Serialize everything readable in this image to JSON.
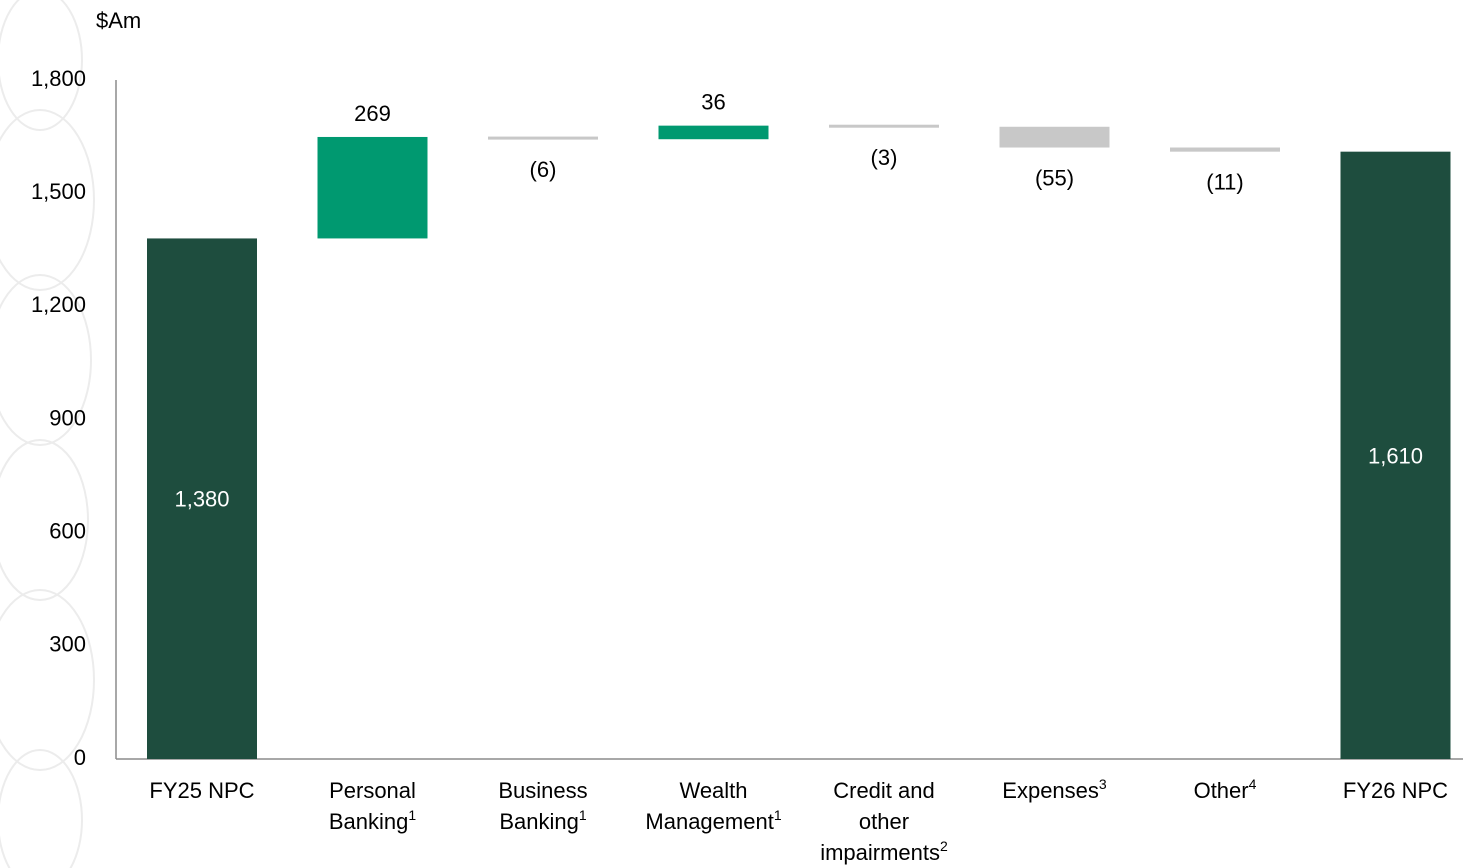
{
  "chart_data": {
    "type": "bar",
    "subtype": "waterfall",
    "unit_label": "$Am",
    "ylim": [
      0,
      1800
    ],
    "yticks": [
      0,
      300,
      600,
      900,
      1200,
      1500,
      1800
    ],
    "ytick_labels": [
      "0",
      "300",
      "600",
      "900",
      "1,200",
      "1,500",
      "1,800"
    ],
    "grid": false,
    "legend": "none",
    "colors": {
      "total": "#1e4d3e",
      "increase": "#009970",
      "decrease": "#c8c8c8"
    },
    "bars": [
      {
        "label": "FY25 NPC",
        "sup": "",
        "kind": "total",
        "value": 1380,
        "label_text": "1,380"
      },
      {
        "label": "Personal Banking",
        "sup": "1",
        "kind": "increase",
        "value": 269,
        "label_text": "269"
      },
      {
        "label": "Business Banking",
        "sup": "1",
        "kind": "decrease",
        "value": -6,
        "label_text": "(6)"
      },
      {
        "label": "Wealth Management",
        "sup": "1",
        "kind": "increase",
        "value": 36,
        "label_text": "36"
      },
      {
        "label": "Credit and other impairments",
        "sup": "2",
        "kind": "decrease",
        "value": -3,
        "label_text": "(3)"
      },
      {
        "label": "Expenses",
        "sup": "3",
        "kind": "decrease",
        "value": -55,
        "label_text": "(55)"
      },
      {
        "label": "Other",
        "sup": "4",
        "kind": "decrease",
        "value": -11,
        "label_text": "(11)"
      },
      {
        "label": "FY26 NPC",
        "sup": "",
        "kind": "total",
        "value": 1610,
        "label_text": "1,610"
      }
    ],
    "category_label_lines": [
      [
        [
          "FY25 NPC",
          ""
        ]
      ],
      [
        [
          "Personal",
          ""
        ],
        [
          "Banking",
          "1"
        ]
      ],
      [
        [
          "Business",
          ""
        ],
        [
          "Banking",
          "1"
        ]
      ],
      [
        [
          "Wealth",
          ""
        ],
        [
          "Management",
          "1"
        ]
      ],
      [
        [
          "Credit and",
          ""
        ],
        [
          "other",
          ""
        ],
        [
          "impairments",
          "2"
        ]
      ],
      [
        [
          "Expenses",
          "3"
        ]
      ],
      [
        [
          "Other",
          "4"
        ]
      ],
      [
        [
          "FY26 NPC",
          ""
        ]
      ]
    ]
  }
}
